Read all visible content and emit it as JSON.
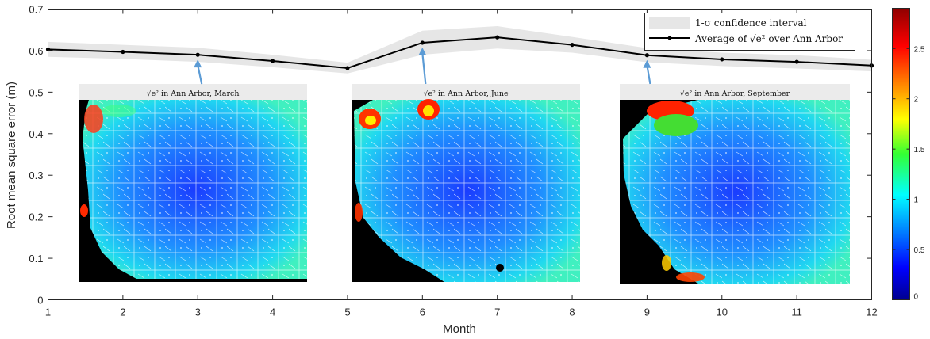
{
  "chart_data": {
    "type": "line",
    "xlabel": "Month",
    "ylabel": "Root mean square error (m)",
    "xlim": [
      1,
      12
    ],
    "ylim": [
      0,
      0.7
    ],
    "x_ticks": [
      "1",
      "2",
      "3",
      "4",
      "5",
      "6",
      "7",
      "8",
      "9",
      "10",
      "11",
      "12"
    ],
    "y_ticks": [
      "0",
      "0.1",
      "0.2",
      "0.3",
      "0.4",
      "0.5",
      "0.6",
      "0.7"
    ],
    "series": [
      {
        "name": "Average of √e² over Ann Arbor",
        "color": "#000000",
        "x": [
          1,
          2,
          3,
          4,
          5,
          6,
          7,
          8,
          9,
          10,
          11,
          12
        ],
        "values": [
          0.603,
          0.597,
          0.59,
          0.575,
          0.558,
          0.619,
          0.632,
          0.614,
          0.589,
          0.579,
          0.573,
          0.564
        ],
        "band_lower": [
          0.585,
          0.58,
          0.573,
          0.56,
          0.545,
          0.59,
          0.605,
          0.595,
          0.572,
          0.563,
          0.557,
          0.55
        ],
        "band_upper": [
          0.621,
          0.614,
          0.607,
          0.59,
          0.571,
          0.648,
          0.659,
          0.633,
          0.606,
          0.595,
          0.589,
          0.578
        ]
      }
    ],
    "band_name": "1-σ confidence interval",
    "band_color": "#e6e6e6",
    "legend": {
      "placement": "top-right",
      "entries": [
        "1-σ confidence interval",
        "Average of √e² over Ann Arbor"
      ]
    },
    "insets": [
      {
        "title": "√e² in Ann Arbor, March",
        "month": 3
      },
      {
        "title": "√e² in Ann Arbor, June",
        "month": 6
      },
      {
        "title": "√e² in Ann Arbor, September",
        "month": 9
      }
    ],
    "colorbar": {
      "colormap": "jet",
      "range": [
        0,
        2.9
      ],
      "ticks": [
        "0",
        "0.5",
        "1",
        "1.5",
        "2",
        "2.5"
      ]
    },
    "arrow_color": "#5b9bd5"
  }
}
